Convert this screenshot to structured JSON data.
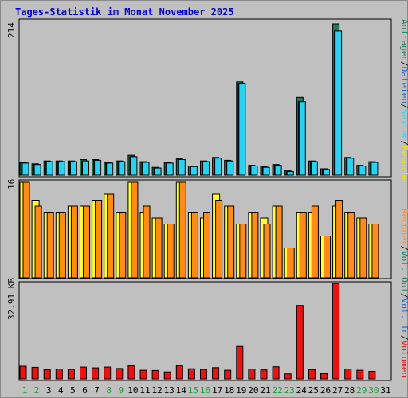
{
  "page_title": "Tages-Statistik im Monat November 2025",
  "colors": {
    "background": "#c0c0c0",
    "anfragen": "#1a7d5a",
    "dateien": "#1d63c9",
    "seiten": "#29d3f0",
    "besuche": "#ffff33",
    "rechner": "#ff8c1a",
    "volumen": "#ee1111",
    "weekend_label": "#1a9c3a",
    "weekday_label": "#000000",
    "title": "#0000cc"
  },
  "axis_labels": {
    "top_max": "214",
    "middle_max": "16",
    "bottom_max": "32.91 KB"
  },
  "right_legend": {
    "top": [
      "Anfragen",
      "/",
      "Dateien",
      "/",
      "Seiten",
      "/",
      "Besuche"
    ],
    "middle": [
      "Rechner",
      "/",
      "Vol. Out",
      "/",
      "Vol. In",
      "/",
      "Volumen"
    ]
  },
  "chart_data": [
    {
      "type": "bar",
      "title": "",
      "ylabel": "Anfragen / Dateien / Seiten",
      "ylim": [
        0,
        214
      ],
      "categories": [
        "1",
        "2",
        "3",
        "4",
        "5",
        "6",
        "7",
        "8",
        "9",
        "10",
        "11",
        "12",
        "13",
        "14",
        "15",
        "16",
        "17",
        "18",
        "19",
        "20",
        "21",
        "22",
        "23",
        "24",
        "25",
        "26",
        "27",
        "28",
        "29",
        "30",
        "31"
      ],
      "series": [
        {
          "name": "Anfragen",
          "values": [
            18,
            16,
            20,
            20,
            20,
            22,
            22,
            18,
            20,
            28,
            19,
            11,
            18,
            23,
            13,
            20,
            25,
            21,
            132,
            14,
            12,
            15,
            6,
            110,
            20,
            9,
            214,
            25,
            14,
            19,
            0
          ]
        },
        {
          "name": "Dateien",
          "values": [
            17,
            15,
            19,
            19,
            19,
            20,
            21,
            17,
            19,
            26,
            18,
            10,
            17,
            22,
            12,
            19,
            24,
            20,
            130,
            13,
            11,
            14,
            5,
            104,
            19,
            8,
            204,
            24,
            13,
            18,
            0
          ]
        },
        {
          "name": "Seiten",
          "values": [
            17,
            15,
            19,
            19,
            19,
            20,
            21,
            17,
            19,
            26,
            18,
            10,
            17,
            22,
            12,
            19,
            24,
            20,
            130,
            13,
            11,
            14,
            5,
            104,
            19,
            8,
            204,
            24,
            13,
            18,
            0
          ]
        }
      ]
    },
    {
      "type": "bar",
      "title": "",
      "ylabel": "Besuche / Rechner",
      "ylim": [
        0,
        16
      ],
      "categories": [
        "1",
        "2",
        "3",
        "4",
        "5",
        "6",
        "7",
        "8",
        "9",
        "10",
        "11",
        "12",
        "13",
        "14",
        "15",
        "16",
        "17",
        "18",
        "19",
        "20",
        "21",
        "22",
        "23",
        "24",
        "25",
        "26",
        "27",
        "28",
        "29",
        "30",
        "31"
      ],
      "series": [
        {
          "name": "Besuche",
          "values": [
            16,
            13,
            11,
            11,
            12,
            12,
            13,
            14,
            11,
            16,
            11,
            10,
            9,
            16,
            11,
            10,
            14,
            12,
            9,
            11,
            10,
            12,
            5,
            11,
            11,
            7,
            12,
            11,
            10,
            9,
            0
          ]
        },
        {
          "name": "Rechner",
          "values": [
            16,
            12,
            11,
            11,
            12,
            12,
            13,
            14,
            11,
            16,
            12,
            10,
            9,
            16,
            11,
            11,
            13,
            12,
            9,
            11,
            9,
            12,
            5,
            11,
            12,
            7,
            13,
            11,
            10,
            9,
            0
          ]
        }
      ]
    },
    {
      "type": "bar",
      "title": "",
      "ylabel": "Volumen",
      "ylim": [
        0,
        32.91
      ],
      "categories": [
        "1",
        "2",
        "3",
        "4",
        "5",
        "6",
        "7",
        "8",
        "9",
        "10",
        "11",
        "12",
        "13",
        "14",
        "15",
        "16",
        "17",
        "18",
        "19",
        "20",
        "21",
        "22",
        "23",
        "24",
        "25",
        "26",
        "27",
        "28",
        "29",
        "30",
        "31"
      ],
      "series": [
        {
          "name": "Volumen",
          "values": [
            4.4,
            4.0,
            3.2,
            3.4,
            3.3,
            4.1,
            3.8,
            4.1,
            3.6,
            4.5,
            3.0,
            2.9,
            2.4,
            4.6,
            3.5,
            3.3,
            3.9,
            3.0,
            11.2,
            3.4,
            3.1,
            4.2,
            1.7,
            25.3,
            3.2,
            1.8,
            32.91,
            3.4,
            3.0,
            2.6,
            0
          ]
        }
      ]
    }
  ]
}
